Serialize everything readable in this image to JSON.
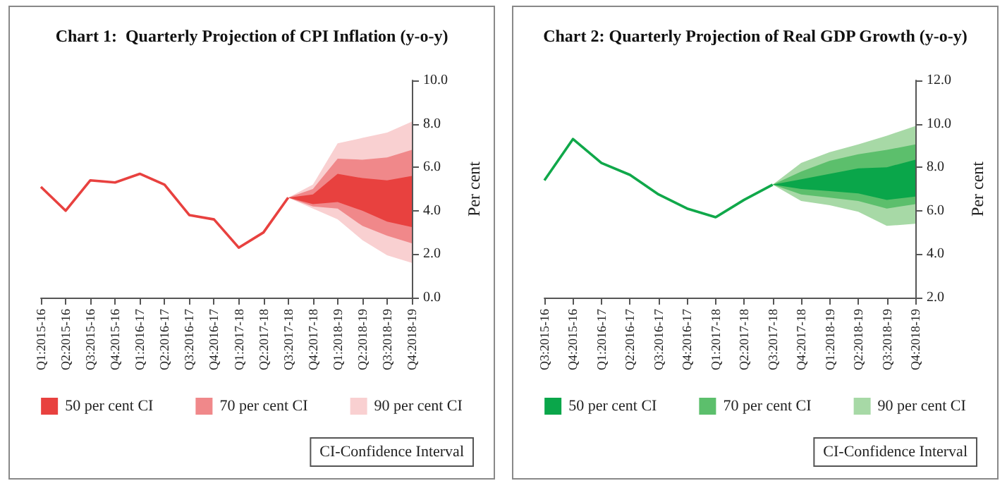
{
  "chart_data": [
    {
      "type": "line",
      "title": "Chart 1:  Quarterly Projection of CPI Inflation (y-o-y)",
      "ylabel": "Per cent",
      "categories": [
        "Q1:2015-16",
        "Q2:2015-16",
        "Q3:2015-16",
        "Q4:2015-16",
        "Q1:2016-17",
        "Q2:2016-17",
        "Q3:2016-17",
        "Q4:2016-17",
        "Q1:2017-18",
        "Q2:2017-18",
        "Q3:2017-18",
        "Q4:2017-18",
        "Q1:2018-19",
        "Q2:2018-19",
        "Q3:2018-19",
        "Q4:2018-19"
      ],
      "series": [
        {
          "color": "#e8413f",
          "values": [
            5.1,
            4.0,
            5.4,
            5.3,
            5.7,
            5.2,
            3.8,
            3.6,
            2.3,
            3.0,
            4.6,
            null,
            null,
            null,
            null,
            null
          ]
        },
        {
          "name": "50 per cent CI",
          "type": "area",
          "color": "#e8413f",
          "values": [
            null,
            null,
            null,
            null,
            null,
            null,
            null,
            null,
            null,
            null,
            null,
            null,
            null,
            null,
            null,
            null
          ],
          "lower": [
            null,
            null,
            null,
            null,
            null,
            null,
            null,
            null,
            null,
            null,
            4.6,
            4.3,
            4.4,
            4.0,
            3.5,
            3.25
          ],
          "upper": [
            null,
            null,
            null,
            null,
            null,
            null,
            null,
            null,
            null,
            null,
            4.6,
            4.75,
            5.7,
            5.5,
            5.4,
            5.6
          ]
        },
        {
          "name": "70 per cent CI",
          "type": "area",
          "color": "#f0888a",
          "values": [
            null,
            null,
            null,
            null,
            null,
            null,
            null,
            null,
            null,
            null,
            null,
            null,
            null,
            null,
            null,
            null
          ],
          "lower": [
            null,
            null,
            null,
            null,
            null,
            null,
            null,
            null,
            null,
            null,
            4.6,
            4.2,
            4.1,
            3.3,
            2.85,
            2.5
          ],
          "upper": [
            null,
            null,
            null,
            null,
            null,
            null,
            null,
            null,
            null,
            null,
            4.6,
            5.0,
            6.4,
            6.35,
            6.45,
            6.8
          ]
        },
        {
          "name": "90 per cent CI",
          "type": "area",
          "color": "#f9d0d1",
          "values": [
            null,
            null,
            null,
            null,
            null,
            null,
            null,
            null,
            null,
            null,
            null,
            null,
            null,
            null,
            null,
            null
          ],
          "lower": [
            null,
            null,
            null,
            null,
            null,
            null,
            null,
            null,
            null,
            null,
            4.6,
            4.1,
            3.6,
            2.65,
            1.95,
            1.6
          ],
          "upper": [
            null,
            null,
            null,
            null,
            null,
            null,
            null,
            null,
            null,
            null,
            4.6,
            5.2,
            7.1,
            7.35,
            7.6,
            8.1
          ]
        }
      ],
      "ylim": [
        0,
        10
      ],
      "yticks": [
        {
          "value": 0,
          "label": "0.0"
        },
        {
          "value": 2,
          "label": "2.0"
        },
        {
          "value": 4,
          "label": "4.0"
        },
        {
          "value": 6,
          "label": "6.0"
        },
        {
          "value": 8,
          "label": "8.0"
        },
        {
          "value": 10,
          "label": "10.0"
        }
      ],
      "legend": "bottom",
      "grid": false,
      "marker": "none",
      "line_style": "solid",
      "annotations": [
        "CI-Confidence Interval"
      ]
    },
    {
      "type": "line",
      "title": "Chart 2: Quarterly Projection of Real GDP Growth (y-o-y)",
      "ylabel": "Per cent",
      "categories": [
        "Q3:2015-16",
        "Q4:2015-16",
        "Q1:2016-17",
        "Q2:2016-17",
        "Q3:2016-17",
        "Q4:2016-17",
        "Q1:2017-18",
        "Q2:2017-18",
        "Q3:2017-18",
        "Q4:2017-18",
        "Q1:2018-19",
        "Q2:2018-19",
        "Q3:2018-19",
        "Q4:2018-19"
      ],
      "series": [
        {
          "color": "#10a84a",
          "values": [
            7.4,
            9.3,
            8.2,
            7.65,
            6.75,
            6.1,
            5.7,
            6.5,
            7.2,
            null,
            null,
            null,
            null,
            null
          ]
        },
        {
          "name": "50 per cent CI",
          "type": "area",
          "color": "#0aa64a",
          "values": [
            null,
            null,
            null,
            null,
            null,
            null,
            null,
            null,
            null,
            null,
            null,
            null,
            null,
            null
          ],
          "lower": [
            null,
            null,
            null,
            null,
            null,
            null,
            null,
            null,
            7.2,
            7.0,
            6.9,
            6.8,
            6.5,
            6.65
          ],
          "upper": [
            null,
            null,
            null,
            null,
            null,
            null,
            null,
            null,
            7.2,
            7.45,
            7.7,
            7.95,
            8.0,
            8.35
          ]
        },
        {
          "name": "70 per cent CI",
          "type": "area",
          "color": "#5cbf6c",
          "values": [
            null,
            null,
            null,
            null,
            null,
            null,
            null,
            null,
            null,
            null,
            null,
            null,
            null,
            null
          ],
          "lower": [
            null,
            null,
            null,
            null,
            null,
            null,
            null,
            null,
            7.2,
            6.75,
            6.6,
            6.45,
            6.1,
            6.3
          ],
          "upper": [
            null,
            null,
            null,
            null,
            null,
            null,
            null,
            null,
            7.2,
            7.8,
            8.3,
            8.6,
            8.8,
            9.05
          ]
        },
        {
          "name": "90 per cent CI",
          "type": "area",
          "color": "#a7d9a6",
          "values": [
            null,
            null,
            null,
            null,
            null,
            null,
            null,
            null,
            null,
            null,
            null,
            null,
            null,
            null
          ],
          "lower": [
            null,
            null,
            null,
            null,
            null,
            null,
            null,
            null,
            7.2,
            6.45,
            6.25,
            5.95,
            5.3,
            5.4
          ],
          "upper": [
            null,
            null,
            null,
            null,
            null,
            null,
            null,
            null,
            7.2,
            8.2,
            8.7,
            9.05,
            9.45,
            9.9
          ]
        }
      ],
      "ylim": [
        2,
        12
      ],
      "yticks": [
        {
          "value": 2,
          "label": "2.0"
        },
        {
          "value": 4,
          "label": "4.0"
        },
        {
          "value": 6,
          "label": "6.0"
        },
        {
          "value": 8,
          "label": "8.0"
        },
        {
          "value": 10,
          "label": "10.0"
        },
        {
          "value": 12,
          "label": "12.0"
        }
      ],
      "legend": "bottom",
      "grid": false,
      "marker": "none",
      "line_style": "solid",
      "annotations": [
        "CI-Confidence Interval"
      ]
    }
  ]
}
